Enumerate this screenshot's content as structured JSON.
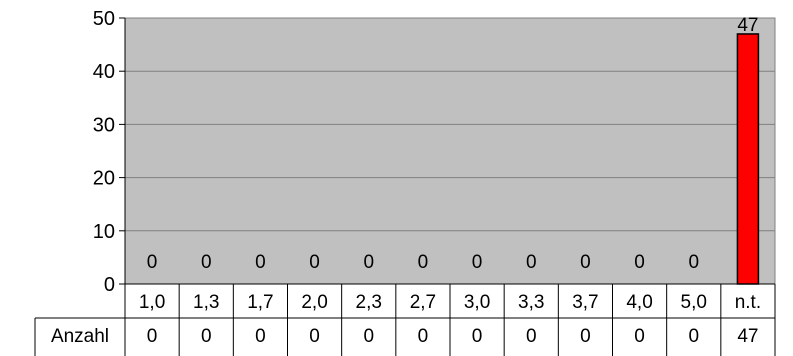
{
  "chart_data": {
    "type": "bar",
    "categories": [
      "1,0",
      "1,3",
      "1,7",
      "2,0",
      "2,3",
      "2,7",
      "3,0",
      "3,3",
      "3,7",
      "4,0",
      "5,0",
      "n.t."
    ],
    "series": [
      {
        "name": "Anzahl",
        "values": [
          0,
          0,
          0,
          0,
          0,
          0,
          0,
          0,
          0,
          0,
          0,
          47
        ]
      }
    ],
    "data_labels": [
      "0",
      "0",
      "0",
      "0",
      "0",
      "0",
      "0",
      "0",
      "0",
      "0",
      "0",
      "47"
    ],
    "ylim": [
      0,
      50
    ],
    "yticks": [
      "0",
      "10",
      "20",
      "30",
      "40",
      "50"
    ],
    "grid": true,
    "plot_background": "#c0c0c0",
    "bar_color": "#ff0000",
    "table": {
      "row_label": "Anzahl",
      "values": [
        "0",
        "0",
        "0",
        "0",
        "0",
        "0",
        "0",
        "0",
        "0",
        "0",
        "0",
        "47"
      ]
    }
  }
}
